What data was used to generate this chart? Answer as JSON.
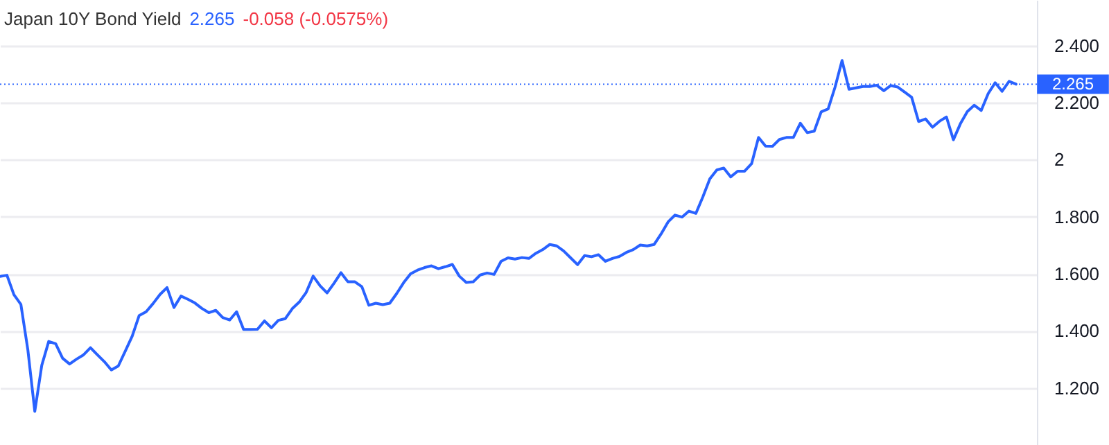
{
  "chart_data": {
    "type": "line",
    "title": "Japan 10Y Bond Yield",
    "annotations": [
      "2.265",
      "-0.058 (-0.0575%)"
    ],
    "categories": [
      null,
      null,
      null,
      null,
      null,
      null,
      null,
      null,
      null,
      null,
      null,
      null,
      null,
      null,
      null,
      null,
      null,
      null,
      null,
      null,
      null,
      null,
      null,
      null,
      null,
      null,
      null,
      null,
      null,
      null,
      null,
      null,
      null,
      null,
      null,
      null,
      null,
      null,
      null,
      null,
      null,
      null,
      null,
      null,
      null,
      null,
      null,
      null,
      null,
      null,
      null,
      null,
      null,
      null,
      null,
      null,
      null,
      null,
      null,
      null,
      null,
      null,
      null,
      null,
      null,
      null,
      null,
      null,
      null,
      null,
      null,
      null,
      null,
      null,
      null,
      null,
      null,
      null,
      null,
      null,
      null,
      null,
      null,
      null,
      null,
      null,
      null,
      null,
      null,
      null,
      null,
      null,
      null,
      null,
      null,
      null,
      null,
      null,
      null,
      null,
      null,
      null,
      null,
      null,
      null,
      null,
      null,
      null,
      null,
      null,
      null,
      null,
      null,
      null,
      null,
      null,
      null,
      null,
      null,
      null,
      null,
      null,
      null,
      null,
      null,
      null,
      null,
      null,
      null,
      null,
      null,
      null,
      null,
      null,
      null,
      null,
      null,
      null,
      null,
      null,
      null,
      null,
      null,
      null,
      null,
      null,
      null,
      null,
      null,
      null
    ],
    "series": [
      {
        "color": "#2962ff",
        "values": [
          1.591,
          1.595,
          1.527,
          1.493,
          1.334,
          1.118,
          1.279,
          1.363,
          1.355,
          1.304,
          1.284,
          1.301,
          1.316,
          1.341,
          1.316,
          1.292,
          1.263,
          1.277,
          1.329,
          1.382,
          1.454,
          1.467,
          1.496,
          1.528,
          1.552,
          1.482,
          1.522,
          1.511,
          1.498,
          1.479,
          1.464,
          1.472,
          1.447,
          1.438,
          1.467,
          1.405,
          1.405,
          1.406,
          1.435,
          1.411,
          1.437,
          1.443,
          1.478,
          1.501,
          1.535,
          1.592,
          1.558,
          1.533,
          1.567,
          1.604,
          1.572,
          1.572,
          1.555,
          1.49,
          1.497,
          1.492,
          1.497,
          1.531,
          1.569,
          1.6,
          1.613,
          1.622,
          1.628,
          1.618,
          1.625,
          1.633,
          1.592,
          1.57,
          1.572,
          1.596,
          1.603,
          1.598,
          1.644,
          1.656,
          1.652,
          1.657,
          1.654,
          1.672,
          1.685,
          1.703,
          1.698,
          1.68,
          1.656,
          1.632,
          1.664,
          1.66,
          1.667,
          1.644,
          1.654,
          1.661,
          1.675,
          1.685,
          1.701,
          1.698,
          1.703,
          1.74,
          1.782,
          1.806,
          1.799,
          1.82,
          1.812,
          1.87,
          1.933,
          1.964,
          1.971,
          1.94,
          1.96,
          1.96,
          1.986,
          2.078,
          2.048,
          2.047,
          2.071,
          2.078,
          2.078,
          2.128,
          2.095,
          2.1,
          2.168,
          2.178,
          2.255,
          2.348,
          2.247,
          2.252,
          2.257,
          2.257,
          2.261,
          2.242,
          2.26,
          2.255,
          2.237,
          2.219,
          2.134,
          2.143,
          2.114,
          2.135,
          2.15,
          2.07,
          2.126,
          2.169,
          2.191,
          2.173,
          2.232,
          2.27,
          2.24,
          2.275,
          2.265,
          null,
          null,
          null
        ]
      }
    ],
    "ylim": [
      1.0,
      2.56
    ],
    "yticks": [
      {
        "value": 1.2,
        "label": "1.200"
      },
      {
        "value": 1.4,
        "label": "1.400"
      },
      {
        "value": 1.6,
        "label": "1.600"
      },
      {
        "value": 1.8,
        "label": "1.800"
      },
      2,
      {
        "value": 2.2,
        "label": "2.200"
      },
      {
        "value": 2.4,
        "label": "2.400"
      }
    ],
    "grid": "y",
    "tick_labels": "y",
    "marker": "none",
    "line_style": "solid",
    "ref_lines": [
      {
        "axis": "y",
        "value": 2.265,
        "label": "2.265",
        "color": "#2962ff",
        "line_style": "dotted"
      }
    ]
  }
}
